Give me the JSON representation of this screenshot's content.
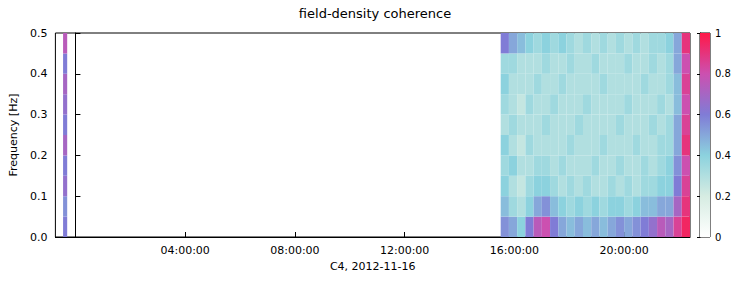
{
  "chart_data": {
    "type": "heatmap",
    "title": "field-density coherence",
    "xlabel": "C4, 2012-11-16",
    "ylabel": "Frequency [Hz]",
    "xlim": [
      -0.73,
      22.4
    ],
    "xticks": [
      {
        "value": 4,
        "label": "04:00:00"
      },
      {
        "value": 8,
        "label": "08:00:00"
      },
      {
        "value": 12,
        "label": "12:00:00"
      },
      {
        "value": 16,
        "label": "16:00:00"
      },
      {
        "value": 20,
        "label": "20:00:00"
      }
    ],
    "ylim": [
      0,
      0.5
    ],
    "yticks": [
      {
        "value": 0,
        "label": "0.0"
      },
      0.1,
      0.2,
      0.3,
      0.4,
      0.5
    ],
    "frequency_bins": [
      0,
      0.05,
      0.1,
      0.15,
      0.2,
      0.25,
      0.3,
      0.35,
      0.4,
      0.45,
      0.5
    ],
    "time_bins": [
      [
        -0.45,
        -0.3
      ],
      [
        15.5,
        15.8
      ],
      [
        15.8,
        16.1
      ],
      [
        16.1,
        16.4
      ],
      [
        16.4,
        16.7
      ],
      [
        16.7,
        17.0
      ],
      [
        17.0,
        17.3
      ],
      [
        17.3,
        17.6
      ],
      [
        17.6,
        17.9
      ],
      [
        17.9,
        18.2
      ],
      [
        18.2,
        18.5
      ],
      [
        18.5,
        18.8
      ],
      [
        18.8,
        19.1
      ],
      [
        19.1,
        19.4
      ],
      [
        19.4,
        19.7
      ],
      [
        19.7,
        20.0
      ],
      [
        20.0,
        20.3
      ],
      [
        20.3,
        20.6
      ],
      [
        20.6,
        20.9
      ],
      [
        20.9,
        21.2
      ],
      [
        21.2,
        21.5
      ],
      [
        21.5,
        21.8
      ],
      [
        21.8,
        22.1
      ],
      [
        22.1,
        22.4
      ]
    ],
    "coherence": [
      [
        0.6,
        0.55,
        0.65,
        0.6,
        0.7,
        0.6,
        0.65,
        0.7,
        0.6,
        0.75
      ],
      [
        0.55,
        0.45,
        0.4,
        0.35,
        0.4,
        0.3,
        0.35,
        0.4,
        0.35,
        0.6
      ],
      [
        0.5,
        0.35,
        0.3,
        0.4,
        0.3,
        0.35,
        0.3,
        0.3,
        0.35,
        0.5
      ],
      [
        0.4,
        0.3,
        0.25,
        0.3,
        0.25,
        0.3,
        0.25,
        0.3,
        0.3,
        0.45
      ],
      [
        0.6,
        0.4,
        0.35,
        0.3,
        0.35,
        0.3,
        0.35,
        0.3,
        0.3,
        0.4
      ],
      [
        0.75,
        0.5,
        0.4,
        0.35,
        0.3,
        0.3,
        0.3,
        0.35,
        0.3,
        0.35
      ],
      [
        0.8,
        0.55,
        0.4,
        0.35,
        0.3,
        0.35,
        0.3,
        0.3,
        0.35,
        0.4
      ],
      [
        0.6,
        0.45,
        0.35,
        0.3,
        0.3,
        0.3,
        0.35,
        0.3,
        0.3,
        0.35
      ],
      [
        0.5,
        0.4,
        0.3,
        0.35,
        0.3,
        0.3,
        0.3,
        0.35,
        0.3,
        0.4
      ],
      [
        0.45,
        0.35,
        0.35,
        0.3,
        0.35,
        0.3,
        0.3,
        0.3,
        0.35,
        0.35
      ],
      [
        0.5,
        0.4,
        0.3,
        0.3,
        0.3,
        0.35,
        0.3,
        0.3,
        0.3,
        0.3
      ],
      [
        0.45,
        0.35,
        0.35,
        0.3,
        0.3,
        0.3,
        0.35,
        0.3,
        0.3,
        0.35
      ],
      [
        0.5,
        0.4,
        0.3,
        0.35,
        0.3,
        0.3,
        0.3,
        0.3,
        0.35,
        0.3
      ],
      [
        0.45,
        0.35,
        0.3,
        0.3,
        0.35,
        0.3,
        0.3,
        0.35,
        0.3,
        0.35
      ],
      [
        0.5,
        0.4,
        0.35,
        0.3,
        0.3,
        0.3,
        0.3,
        0.3,
        0.3,
        0.3
      ],
      [
        0.55,
        0.4,
        0.3,
        0.35,
        0.3,
        0.35,
        0.3,
        0.3,
        0.3,
        0.35
      ],
      [
        0.5,
        0.35,
        0.35,
        0.3,
        0.3,
        0.3,
        0.35,
        0.3,
        0.35,
        0.3
      ],
      [
        0.55,
        0.4,
        0.3,
        0.3,
        0.35,
        0.3,
        0.3,
        0.3,
        0.3,
        0.35
      ],
      [
        0.6,
        0.45,
        0.35,
        0.35,
        0.3,
        0.3,
        0.3,
        0.35,
        0.3,
        0.3
      ],
      [
        0.65,
        0.45,
        0.35,
        0.3,
        0.3,
        0.35,
        0.3,
        0.3,
        0.35,
        0.35
      ],
      [
        0.75,
        0.5,
        0.4,
        0.35,
        0.35,
        0.3,
        0.35,
        0.3,
        0.3,
        0.35
      ],
      [
        0.7,
        0.5,
        0.4,
        0.4,
        0.35,
        0.35,
        0.3,
        0.35,
        0.35,
        0.4
      ],
      [
        0.85,
        0.7,
        0.6,
        0.55,
        0.5,
        0.5,
        0.45,
        0.45,
        0.5,
        0.5
      ],
      [
        0.95,
        0.9,
        0.85,
        0.8,
        0.9,
        0.85,
        0.8,
        0.85,
        0.8,
        0.9
      ]
    ],
    "colorbar_range": [
      0,
      1
    ],
    "colorbar_ticks": [
      0,
      0.2,
      0.4,
      0.6,
      0.8,
      1
    ]
  }
}
